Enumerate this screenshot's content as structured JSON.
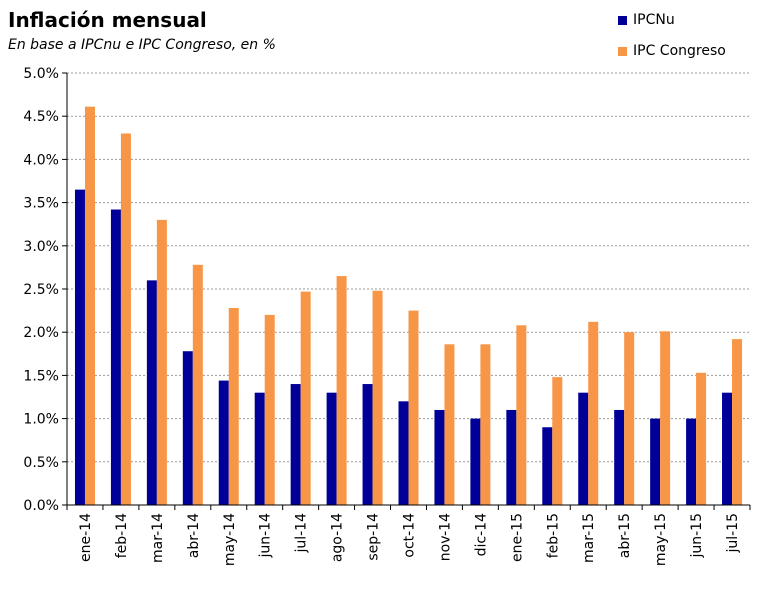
{
  "chart_data": {
    "type": "bar",
    "title": "Inflación mensual",
    "subtitle": "En base a IPCnu e IPC Congreso, en %",
    "categories": [
      "ene-14",
      "feb-14",
      "mar-14",
      "abr-14",
      "may-14",
      "jun-14",
      "jul-14",
      "ago-14",
      "sep-14",
      "oct-14",
      "nov-14",
      "dic-14",
      "ene-15",
      "feb-15",
      "mar-15",
      "abr-15",
      "may-15",
      "jun-15",
      "jul-15"
    ],
    "series": [
      {
        "name": "IPCNu",
        "color": "#000099",
        "values": [
          3.65,
          3.42,
          2.6,
          1.78,
          1.44,
          1.3,
          1.4,
          1.3,
          1.4,
          1.2,
          1.1,
          1.0,
          1.1,
          0.9,
          1.3,
          1.1,
          1.0,
          1.0,
          1.3
        ]
      },
      {
        "name": "IPC Congreso",
        "color": "#F79646",
        "values": [
          4.61,
          4.3,
          3.3,
          2.78,
          2.28,
          2.2,
          2.47,
          2.65,
          2.48,
          2.25,
          1.86,
          1.86,
          2.08,
          1.48,
          2.12,
          2.0,
          2.01,
          1.53,
          1.92
        ]
      }
    ],
    "ylim": [
      0,
      5
    ],
    "yticks": [
      "0.0%",
      "0.5%",
      "1.0%",
      "1.5%",
      "2.0%",
      "2.5%",
      "3.0%",
      "3.5%",
      "4.0%",
      "4.5%",
      "5.0%"
    ],
    "grid": true,
    "legend_position": "top-right",
    "xlabel": "",
    "ylabel": ""
  }
}
